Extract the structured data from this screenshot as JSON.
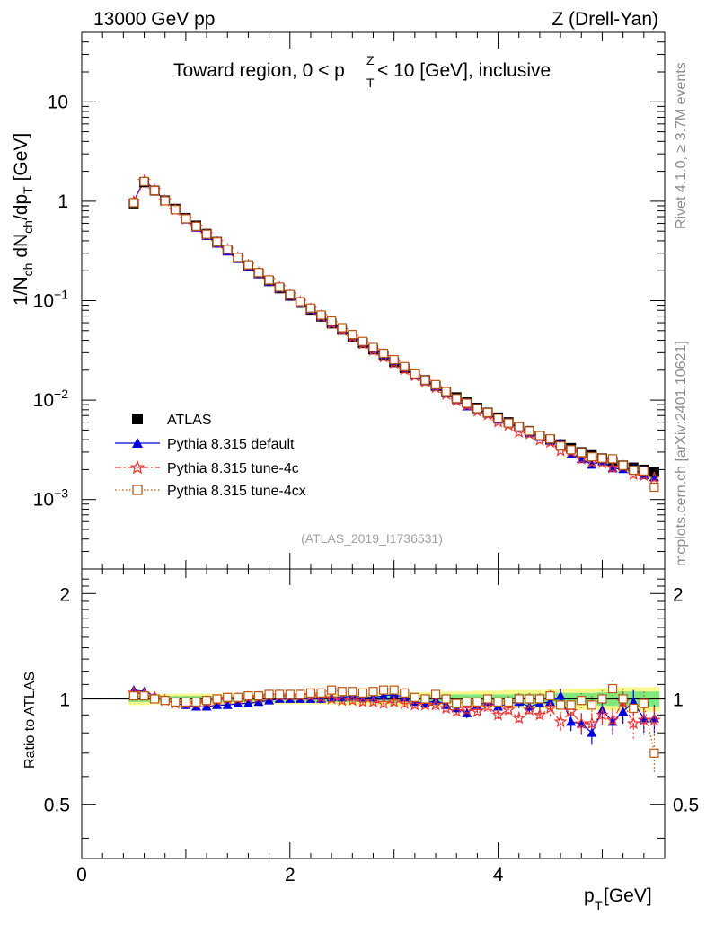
{
  "header": {
    "energy": "13000 GeV pp",
    "process": "Z (Drell-Yan)",
    "panel_title_prefix": "Toward region, 0 < p",
    "panel_title_sup": "Z",
    "panel_title_sub": "T",
    "panel_title_suffix": " < 10 [GeV], inclusive",
    "side_rivet": "Rivet 4.1.0, ≥ 3.7M events",
    "side_mcplots": "mcplots.cern.ch [arXiv:2401.10621]",
    "analysis_id": "(ATLAS_2019_I1736531)"
  },
  "chart_data": {
    "type": "scatter",
    "title": "Toward region, 0 < pT^Z < 10 [GeV], inclusive",
    "xlabel_main": "p",
    "xlabel_sub": "T",
    "xlabel_unit": " [GeV]",
    "ylabel_main": "1/N",
    "ylabel_parts": [
      "1/N",
      "ch",
      " dN",
      "ch",
      "/dp",
      "T",
      " [GeV]"
    ],
    "ratio_ylabel": "Ratio to ATLAS",
    "xlim": [
      0,
      5.6
    ],
    "ylim_main": [
      0.0002,
      50
    ],
    "ylim_ratio": [
      0.35,
      2.35
    ],
    "yscale": "log",
    "x_ticks": [
      "0",
      "2",
      "4"
    ],
    "main_y_ticks": [
      {
        "v": 10,
        "base": "10",
        "exp": ""
      },
      {
        "v": 1,
        "base": "1",
        "exp": ""
      },
      {
        "v": 0.1,
        "base": "10",
        "exp": "−1"
      },
      {
        "v": 0.01,
        "base": "10",
        "exp": "−2"
      },
      {
        "v": 0.001,
        "base": "10",
        "exp": "−3"
      }
    ],
    "ratio_y_ticks": [
      "2",
      "1",
      "0.5"
    ],
    "ratio_y_tick_values": [
      2,
      1,
      0.5
    ],
    "x": [
      0.5,
      0.6,
      0.7,
      0.8,
      0.9,
      1.0,
      1.1,
      1.2,
      1.3,
      1.4,
      1.5,
      1.6,
      1.7,
      1.8,
      1.9,
      2.0,
      2.1,
      2.2,
      2.3,
      2.4,
      2.5,
      2.6,
      2.7,
      2.8,
      2.9,
      3.0,
      3.1,
      3.2,
      3.3,
      3.4,
      3.5,
      3.6,
      3.7,
      3.8,
      3.9,
      4.0,
      4.1,
      4.2,
      4.3,
      4.4,
      4.5,
      4.6,
      4.7,
      4.8,
      4.9,
      5.0,
      5.1,
      5.2,
      5.3,
      5.4,
      5.5
    ],
    "data_values": [
      0.95,
      1.55,
      1.28,
      1.02,
      0.84,
      0.68,
      0.57,
      0.47,
      0.39,
      0.325,
      0.27,
      0.225,
      0.188,
      0.157,
      0.133,
      0.112,
      0.095,
      0.081,
      0.069,
      0.059,
      0.051,
      0.0435,
      0.0375,
      0.0323,
      0.0279,
      0.0241,
      0.0209,
      0.0182,
      0.0159,
      0.0139,
      0.0122,
      0.0107,
      0.0095,
      0.0084,
      0.0075,
      0.0067,
      0.006,
      0.0054,
      0.0049,
      0.0044,
      0.004,
      0.0036,
      0.0033,
      0.003,
      0.0028,
      0.0026,
      0.0024,
      0.0022,
      0.0021,
      0.002,
      0.0019
    ],
    "series": [
      {
        "name": "ATLAS",
        "color": "#000000",
        "marker": "square-filled",
        "ratio": []
      },
      {
        "name": "Pythia 8.315 default",
        "color": "#0000dd",
        "marker": "triangle-filled",
        "line": "solid",
        "ratio": [
          1.06,
          1.05,
          1.02,
          0.99,
          0.97,
          0.96,
          0.95,
          0.95,
          0.96,
          0.96,
          0.97,
          0.97,
          0.98,
          0.99,
          1.0,
          1.0,
          1.0,
          1.0,
          1.0,
          1.01,
          1.01,
          1.02,
          1.01,
          1.01,
          1.02,
          1.03,
          1.01,
          0.98,
          0.97,
          0.99,
          0.96,
          0.94,
          0.91,
          0.96,
          0.98,
          0.95,
          0.97,
          0.98,
          0.95,
          0.97,
          0.98,
          1.02,
          0.86,
          0.85,
          0.8,
          0.93,
          0.86,
          0.92,
          0.98,
          0.88,
          0.88
        ],
        "ratio_err": [
          0.01,
          0.01,
          0.01,
          0.01,
          0.01,
          0.01,
          0.01,
          0.01,
          0.01,
          0.01,
          0.01,
          0.01,
          0.01,
          0.01,
          0.01,
          0.01,
          0.01,
          0.01,
          0.01,
          0.01,
          0.02,
          0.02,
          0.02,
          0.02,
          0.02,
          0.02,
          0.02,
          0.02,
          0.02,
          0.02,
          0.03,
          0.03,
          0.03,
          0.03,
          0.03,
          0.03,
          0.04,
          0.04,
          0.04,
          0.04,
          0.05,
          0.05,
          0.05,
          0.06,
          0.06,
          0.06,
          0.07,
          0.07,
          0.08,
          0.08,
          0.08
        ]
      },
      {
        "name": "Pythia 8.315 tune-4c",
        "color": "#ee3333",
        "marker": "star-open",
        "line": "dashdot",
        "ratio": [
          1.04,
          1.03,
          1.01,
          0.99,
          0.97,
          0.97,
          0.97,
          0.98,
          0.99,
          1.0,
          1.0,
          1.01,
          1.01,
          1.02,
          1.02,
          1.02,
          1.02,
          1.02,
          1.01,
          1.0,
          0.99,
          0.99,
          0.98,
          0.98,
          0.97,
          0.98,
          0.97,
          0.96,
          0.96,
          0.96,
          0.94,
          0.92,
          0.93,
          0.92,
          0.95,
          0.9,
          0.93,
          0.88,
          0.93,
          0.9,
          0.94,
          0.86,
          0.92,
          0.85,
          0.85,
          0.9,
          0.87,
          0.98,
          0.85,
          0.87,
          0.87
        ],
        "ratio_err": [
          0.01,
          0.01,
          0.01,
          0.01,
          0.01,
          0.01,
          0.01,
          0.01,
          0.01,
          0.01,
          0.01,
          0.01,
          0.01,
          0.01,
          0.01,
          0.01,
          0.01,
          0.01,
          0.01,
          0.02,
          0.02,
          0.02,
          0.02,
          0.02,
          0.02,
          0.02,
          0.02,
          0.02,
          0.02,
          0.03,
          0.03,
          0.03,
          0.03,
          0.03,
          0.03,
          0.04,
          0.04,
          0.04,
          0.04,
          0.04,
          0.05,
          0.05,
          0.05,
          0.06,
          0.06,
          0.06,
          0.07,
          0.07,
          0.08,
          0.08,
          0.08
        ]
      },
      {
        "name": "Pythia 8.315 tune-4cx",
        "color": "#bb5511",
        "marker": "square-open",
        "line": "dotted",
        "ratio": [
          1.02,
          1.02,
          1.0,
          0.99,
          0.98,
          0.98,
          0.98,
          0.99,
          1.0,
          1.01,
          1.01,
          1.02,
          1.02,
          1.03,
          1.03,
          1.03,
          1.03,
          1.04,
          1.04,
          1.06,
          1.05,
          1.05,
          1.04,
          1.05,
          1.06,
          1.06,
          1.04,
          1.01,
          1.0,
          1.03,
          1.0,
          0.97,
          0.98,
          0.98,
          1.0,
          0.98,
          0.98,
          1.0,
          1.0,
          1.0,
          1.02,
          0.96,
          0.96,
          0.99,
          0.96,
          1.0,
          1.07,
          1.0,
          0.94,
          0.97,
          0.7
        ],
        "ratio_err": [
          0.01,
          0.01,
          0.01,
          0.01,
          0.01,
          0.01,
          0.01,
          0.01,
          0.01,
          0.01,
          0.01,
          0.01,
          0.01,
          0.01,
          0.01,
          0.01,
          0.01,
          0.01,
          0.01,
          0.02,
          0.02,
          0.02,
          0.02,
          0.02,
          0.02,
          0.02,
          0.02,
          0.02,
          0.02,
          0.02,
          0.03,
          0.03,
          0.03,
          0.03,
          0.03,
          0.03,
          0.04,
          0.04,
          0.04,
          0.04,
          0.04,
          0.05,
          0.05,
          0.05,
          0.06,
          0.06,
          0.06,
          0.07,
          0.07,
          0.08,
          0.09
        ]
      }
    ],
    "band_inner": [
      0.02,
      0.02,
      0.02,
      0.02,
      0.02,
      0.02,
      0.02,
      0.02,
      0.02,
      0.02,
      0.02,
      0.02,
      0.02,
      0.02,
      0.02,
      0.02,
      0.02,
      0.02,
      0.02,
      0.02,
      0.02,
      0.02,
      0.02,
      0.02,
      0.02,
      0.025,
      0.025,
      0.025,
      0.025,
      0.025,
      0.03,
      0.03,
      0.03,
      0.03,
      0.03,
      0.03,
      0.03,
      0.035,
      0.035,
      0.035,
      0.035,
      0.04,
      0.04,
      0.04,
      0.04,
      0.045,
      0.045,
      0.05,
      0.05,
      0.05,
      0.05
    ],
    "band_outer": [
      0.04,
      0.04,
      0.035,
      0.035,
      0.035,
      0.035,
      0.035,
      0.035,
      0.035,
      0.035,
      0.035,
      0.035,
      0.035,
      0.035,
      0.035,
      0.035,
      0.035,
      0.035,
      0.035,
      0.035,
      0.04,
      0.04,
      0.04,
      0.04,
      0.04,
      0.045,
      0.045,
      0.045,
      0.045,
      0.05,
      0.05,
      0.05,
      0.05,
      0.055,
      0.055,
      0.055,
      0.06,
      0.06,
      0.06,
      0.06,
      0.065,
      0.065,
      0.07,
      0.07,
      0.07,
      0.075,
      0.075,
      0.08,
      0.08,
      0.08,
      0.08
    ],
    "band_colors": {
      "inner": "#7fe87f",
      "outer": "#f8f88a"
    }
  }
}
